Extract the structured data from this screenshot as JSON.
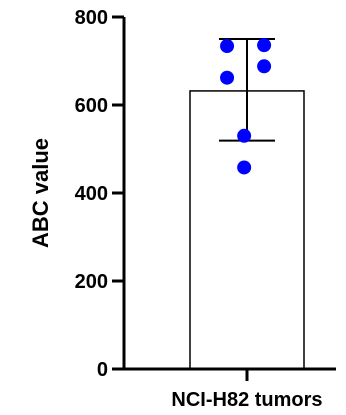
{
  "chart_data": {
    "type": "bar",
    "ylabel": "ABC value",
    "xlabel": "",
    "categories": [
      "NCI-H82 tumors"
    ],
    "values": [
      632
    ],
    "error_bars": {
      "upper": [
        750
      ],
      "lower": [
        519
      ]
    },
    "points": [
      {
        "category": "NCI-H82 tumors",
        "y": 734,
        "offset": -0.35
      },
      {
        "category": "NCI-H82 tumors",
        "y": 736,
        "offset": 0.3
      },
      {
        "category": "NCI-H82 tumors",
        "y": 688,
        "offset": 0.3
      },
      {
        "category": "NCI-H82 tumors",
        "y": 662,
        "offset": -0.35
      },
      {
        "category": "NCI-H82 tumors",
        "y": 530,
        "offset": -0.05
      },
      {
        "category": "NCI-H82 tumors",
        "y": 458,
        "offset": -0.05
      }
    ],
    "ylim": [
      0,
      800
    ],
    "yticks": [
      0,
      200,
      400,
      600,
      800
    ],
    "ytick_labels": [
      "0",
      "200",
      "400",
      "600",
      "800"
    ],
    "grid": false,
    "colors": {
      "bar_fill": "#ffffff",
      "bar_stroke": "#000000",
      "points": "#0000ff",
      "axis": "#000000"
    }
  }
}
